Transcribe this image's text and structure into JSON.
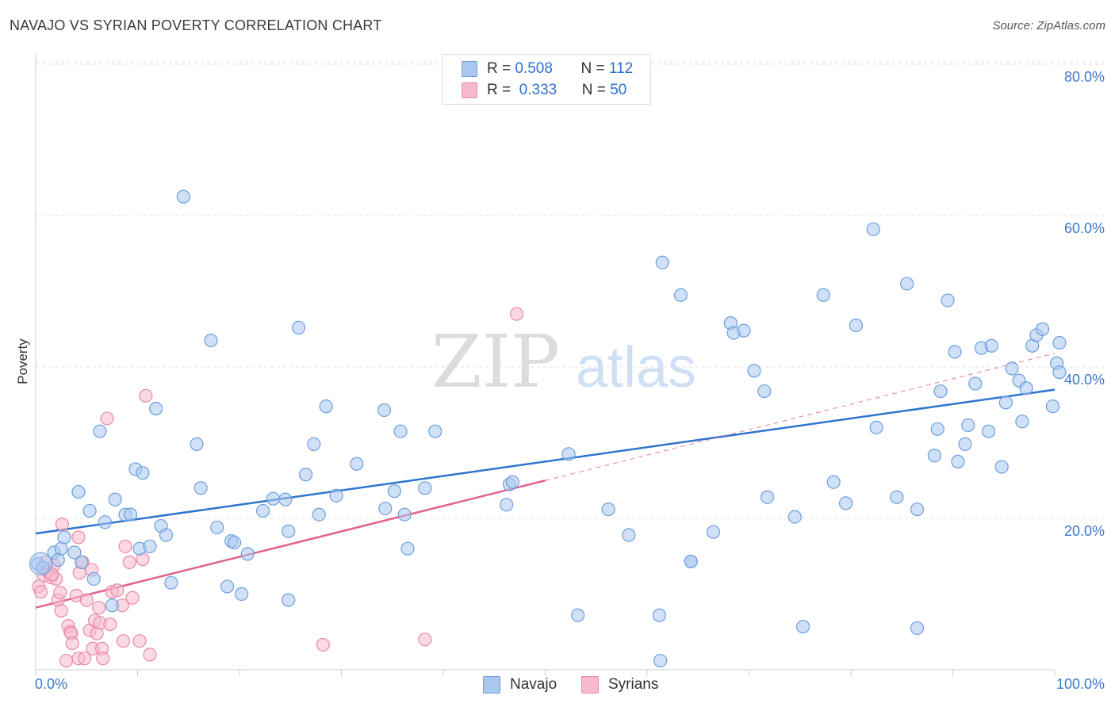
{
  "title": "NAVAJO VS SYRIAN POVERTY CORRELATION CHART",
  "source": "Source: ZipAtlas.com",
  "watermark": {
    "zip": "ZIP",
    "atlas": "atlas"
  },
  "legend": {
    "rows": [
      {
        "r_label": "R =",
        "r_value": "0.508",
        "n_label": "N =",
        "n_value": "112"
      },
      {
        "r_label": "R =",
        "r_value": "0.333",
        "n_label": "N =",
        "n_value": "50"
      }
    ]
  },
  "colors": {
    "navajo_fill": "#a9c8f0",
    "navajo_stroke": "#6d9fdc",
    "navajo_line": "#2e74d0",
    "syrians_fill": "#f7b9cc",
    "syrians_stroke": "#e88aa7",
    "syrians_line": "#e0628d",
    "axis_label": "#3d78c9",
    "grid": "#e2e2e2"
  },
  "chart_data": {
    "type": "scatter",
    "title": "NAVAJO VS SYRIAN POVERTY CORRELATION CHART",
    "xlabel": "",
    "ylabel": "Poverty",
    "xlim": [
      0,
      100
    ],
    "ylim": [
      0,
      82
    ],
    "x_tick_labels": [
      "0.0%",
      "100.0%"
    ],
    "y_ticks": [
      20,
      40,
      60,
      80
    ],
    "y_tick_labels": [
      "20.0%",
      "40.0%",
      "60.0%",
      "80.0%"
    ],
    "grid": true,
    "legend_position": "top-center",
    "series": [
      {
        "name": "Navajo",
        "trend": {
          "x": [
            0,
            100
          ],
          "y": [
            18.0,
            37.0
          ]
        },
        "points": [
          [
            0.2,
            14
          ],
          [
            0.7,
            13.5
          ],
          [
            1.8,
            15.5
          ],
          [
            2.5,
            16
          ],
          [
            2.2,
            14.5
          ],
          [
            2.8,
            17.5
          ],
          [
            3.8,
            15.5
          ],
          [
            4.2,
            23.5
          ],
          [
            4.5,
            14.2
          ],
          [
            5.3,
            21
          ],
          [
            5.7,
            12
          ],
          [
            6.3,
            31.5
          ],
          [
            6.8,
            19.5
          ],
          [
            7.5,
            8.5
          ],
          [
            7.8,
            22.5
          ],
          [
            8.8,
            20.5
          ],
          [
            9.3,
            20.5
          ],
          [
            9.8,
            26.5
          ],
          [
            10.2,
            16
          ],
          [
            10.5,
            26
          ],
          [
            11.2,
            16.3
          ],
          [
            11.8,
            34.5
          ],
          [
            12.3,
            19
          ],
          [
            12.8,
            17.8
          ],
          [
            13.3,
            11.5
          ],
          [
            14.5,
            62.5
          ],
          [
            15.8,
            29.8
          ],
          [
            16.2,
            24
          ],
          [
            17.2,
            43.5
          ],
          [
            17.8,
            18.8
          ],
          [
            18.8,
            11
          ],
          [
            19.2,
            17
          ],
          [
            19.5,
            16.8
          ],
          [
            20.2,
            10
          ],
          [
            20.8,
            15.3
          ],
          [
            22.3,
            21
          ],
          [
            23.3,
            22.6
          ],
          [
            24.5,
            22.5
          ],
          [
            24.8,
            9.2
          ],
          [
            24.8,
            18.3
          ],
          [
            25.8,
            45.2
          ],
          [
            26.5,
            25.8
          ],
          [
            27.3,
            29.8
          ],
          [
            27.8,
            20.5
          ],
          [
            28.5,
            34.8
          ],
          [
            29.5,
            23
          ],
          [
            31.5,
            27.2
          ],
          [
            34.2,
            34.3
          ],
          [
            34.3,
            21.3
          ],
          [
            35.2,
            23.6
          ],
          [
            35.8,
            31.5
          ],
          [
            36.2,
            20.5
          ],
          [
            36.5,
            16
          ],
          [
            38.2,
            24
          ],
          [
            39.2,
            31.5
          ],
          [
            46.2,
            21.8
          ],
          [
            46.5,
            24.5
          ],
          [
            46.8,
            24.8
          ],
          [
            52.3,
            28.5
          ],
          [
            53.2,
            7.2
          ],
          [
            56.2,
            21.2
          ],
          [
            58.2,
            17.8
          ],
          [
            61.2,
            7.2
          ],
          [
            61.5,
            53.8
          ],
          [
            63.3,
            49.5
          ],
          [
            64.3,
            14.3
          ],
          [
            66.5,
            18.2
          ],
          [
            68.2,
            45.8
          ],
          [
            68.5,
            44.5
          ],
          [
            69.5,
            44.8
          ],
          [
            70.5,
            39.5
          ],
          [
            71.5,
            36.8
          ],
          [
            71.8,
            22.8
          ],
          [
            74.5,
            20.2
          ],
          [
            75.3,
            5.7
          ],
          [
            77.3,
            49.5
          ],
          [
            78.3,
            24.8
          ],
          [
            79.5,
            22
          ],
          [
            80.5,
            45.5
          ],
          [
            82.2,
            58.2
          ],
          [
            82.5,
            32
          ],
          [
            84.5,
            22.8
          ],
          [
            85.5,
            51
          ],
          [
            86.5,
            5.5
          ],
          [
            86.5,
            21.2
          ],
          [
            88.2,
            28.3
          ],
          [
            88.5,
            31.8
          ],
          [
            88.8,
            36.8
          ],
          [
            89.5,
            48.8
          ],
          [
            90.2,
            42
          ],
          [
            90.5,
            27.5
          ],
          [
            91.2,
            29.8
          ],
          [
            91.5,
            32.3
          ],
          [
            92.2,
            37.8
          ],
          [
            92.8,
            42.5
          ],
          [
            93.5,
            31.5
          ],
          [
            93.8,
            42.8
          ],
          [
            94.8,
            26.8
          ],
          [
            95.2,
            35.3
          ],
          [
            95.8,
            39.8
          ],
          [
            96.5,
            38.2
          ],
          [
            96.8,
            32.8
          ],
          [
            97.2,
            37.2
          ],
          [
            97.8,
            42.8
          ],
          [
            98.2,
            44.2
          ],
          [
            98.8,
            45
          ],
          [
            99.8,
            34.8
          ],
          [
            100.2,
            40.5
          ],
          [
            100.8,
            43.2
          ],
          [
            101.5,
            39.3
          ],
          [
            61.3,
            1.2
          ],
          [
            64.3,
            14.3
          ]
        ]
      },
      {
        "name": "Syrians",
        "trend": {
          "x": [
            0,
            50
          ],
          "y": [
            8.2,
            25.0
          ]
        },
        "trend_dashed": {
          "x": [
            50,
            100
          ],
          "y": [
            25.0,
            41.8
          ]
        },
        "points": [
          [
            0.3,
            11
          ],
          [
            0.5,
            10.3
          ],
          [
            0.8,
            12.5
          ],
          [
            1.2,
            13
          ],
          [
            1.5,
            12.2
          ],
          [
            1.8,
            13.8
          ],
          [
            2.2,
            9.2
          ],
          [
            2.4,
            10.2
          ],
          [
            2.5,
            7.8
          ],
          [
            2.6,
            19.2
          ],
          [
            3.0,
            1.2
          ],
          [
            3.2,
            5.8
          ],
          [
            3.4,
            5.0
          ],
          [
            3.5,
            4.8
          ],
          [
            3.6,
            3.5
          ],
          [
            4.0,
            9.8
          ],
          [
            4.2,
            17.5
          ],
          [
            4.2,
            1.5
          ],
          [
            4.3,
            12.8
          ],
          [
            4.6,
            14.2
          ],
          [
            4.8,
            1.5
          ],
          [
            5.0,
            9.2
          ],
          [
            5.3,
            5.2
          ],
          [
            5.5,
            13.2
          ],
          [
            5.6,
            2.8
          ],
          [
            5.8,
            6.5
          ],
          [
            6.0,
            4.8
          ],
          [
            6.2,
            8.2
          ],
          [
            6.3,
            6.2
          ],
          [
            6.5,
            2.8
          ],
          [
            6.6,
            1.5
          ],
          [
            7.0,
            33.2
          ],
          [
            7.3,
            6.0
          ],
          [
            7.5,
            10.3
          ],
          [
            8.0,
            10.5
          ],
          [
            8.5,
            8.5
          ],
          [
            8.6,
            3.8
          ],
          [
            8.8,
            16.3
          ],
          [
            9.2,
            14.2
          ],
          [
            9.5,
            9.5
          ],
          [
            10.2,
            3.8
          ],
          [
            10.5,
            14.6
          ],
          [
            10.8,
            36.2
          ],
          [
            11.2,
            2.0
          ],
          [
            28.2,
            3.3
          ],
          [
            38.2,
            4.0
          ],
          [
            47.2,
            47.0
          ],
          [
            2.0,
            12.0
          ],
          [
            1.0,
            14.2
          ],
          [
            1.6,
            12.6
          ]
        ]
      }
    ]
  },
  "bottom_legend": {
    "items": [
      "Navajo",
      "Syrians"
    ]
  }
}
